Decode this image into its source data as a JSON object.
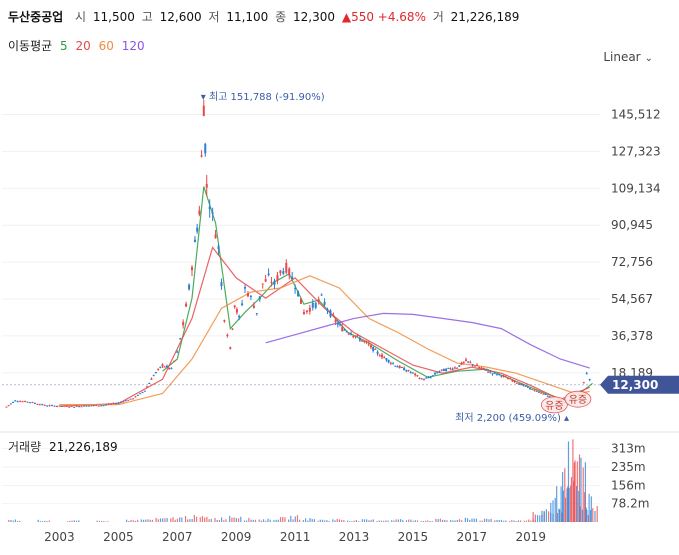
{
  "header": {
    "name": "두산중공업",
    "open_label": "시",
    "open": "11,500",
    "high_label": "고",
    "high": "12,600",
    "low_label": "저",
    "low": "11,100",
    "close_label": "종",
    "close": "12,300",
    "change": "▲550 +4.68%",
    "volume_label": "거",
    "volume": "21,226,189"
  },
  "ma_legend": {
    "label": "이동평균",
    "items": [
      {
        "period": "5",
        "color": "#2e9e3e"
      },
      {
        "period": "20",
        "color": "#e8464b"
      },
      {
        "period": "60",
        "color": "#f08c3c"
      },
      {
        "period": "120",
        "color": "#8a56e2"
      }
    ]
  },
  "scale_selector": {
    "label": "Linear",
    "icon": "chevron-down-icon"
  },
  "volume_panel": {
    "label": "거래량",
    "value": "21,226,189"
  },
  "chart_data": {
    "type": "candlestick",
    "x_ticks": [
      "2003",
      "2005",
      "2007",
      "2009",
      "2011",
      "2013",
      "2015",
      "2017",
      "2019"
    ],
    "y_ticks": [
      18189,
      36378,
      54567,
      72756,
      90945,
      109134,
      127323,
      145512
    ],
    "y_tick_labels": [
      "18,189",
      "36,378",
      "54,567",
      "72,756",
      "90,945",
      "109,134",
      "127,323",
      "145,512"
    ],
    "ylim": [
      -10000,
      165000
    ],
    "current_price": {
      "value": 12300,
      "label": "12,300"
    },
    "high_marker": {
      "value": 151788,
      "year": 2007.9,
      "label": "최고 151,788 (-91.90%)"
    },
    "low_marker": {
      "value": 2200,
      "year": 2020.3,
      "label": "최저 2,200 (459.09%)"
    },
    "event_badges": [
      {
        "label": "유증",
        "year": 2019.8,
        "value": 2400
      },
      {
        "label": "유증",
        "year": 2020.6,
        "value": 5200
      }
    ],
    "price_series": {
      "x": [
        2001.2,
        2001.5,
        2002.0,
        2002.5,
        2003.0,
        2003.5,
        2004.0,
        2004.5,
        2005.0,
        2005.5,
        2005.9,
        2006.2,
        2006.5,
        2006.8,
        2007.0,
        2007.2,
        2007.4,
        2007.6,
        2007.75,
        2007.9,
        2008.0,
        2008.2,
        2008.4,
        2008.6,
        2008.8,
        2008.95,
        2009.1,
        2009.3,
        2009.5,
        2009.7,
        2009.9,
        2010.1,
        2010.3,
        2010.5,
        2010.7,
        2010.9,
        2011.1,
        2011.3,
        2011.5,
        2011.7,
        2011.9,
        2012.1,
        2012.3,
        2012.6,
        2012.9,
        2013.2,
        2013.5,
        2013.8,
        2014.1,
        2014.4,
        2014.7,
        2015.0,
        2015.3,
        2015.6,
        2015.9,
        2016.2,
        2016.5,
        2016.8,
        2017.1,
        2017.4,
        2017.7,
        2018.0,
        2018.3,
        2018.6,
        2018.9,
        2019.2,
        2019.5,
        2019.8,
        2020.0,
        2020.3,
        2020.5,
        2020.7,
        2020.9,
        2021.1
      ],
      "close": [
        1500,
        4500,
        3800,
        2200,
        1800,
        1600,
        2000,
        2200,
        3500,
        5500,
        9500,
        17000,
        22000,
        20000,
        28000,
        42000,
        60000,
        82000,
        98000,
        150000,
        110000,
        95000,
        80000,
        45000,
        30000,
        52000,
        45000,
        60000,
        55000,
        48000,
        62000,
        65000,
        62000,
        68000,
        70000,
        65000,
        58000,
        48000,
        50000,
        52000,
        55000,
        50000,
        45000,
        40000,
        38000,
        35000,
        32000,
        28000,
        25000,
        22000,
        20000,
        18000,
        15000,
        16000,
        19000,
        20000,
        21000,
        24000,
        22000,
        20000,
        18000,
        17000,
        15000,
        13000,
        11000,
        9000,
        7500,
        5200,
        4200,
        3000,
        5000,
        9000,
        18000,
        12300
      ]
    },
    "ma_series": [
      {
        "name": "5",
        "x": [
          2006.5,
          2007.0,
          2007.5,
          2007.9,
          2008.3,
          2008.8,
          2009.3,
          2009.8,
          2010.3,
          2010.8,
          2011.3,
          2011.8,
          2012.3,
          2012.8,
          2013.5,
          2014.5,
          2015.5,
          2016.5,
          2017.5,
          2018.5,
          2019.5,
          2020.3,
          2021.1
        ],
        "y": [
          19000,
          25000,
          55000,
          110000,
          92000,
          40000,
          48000,
          55000,
          63000,
          67000,
          52000,
          54000,
          46000,
          38000,
          33000,
          24000,
          16000,
          19000,
          20000,
          14000,
          8000,
          4000,
          13000
        ]
      },
      {
        "name": "20",
        "x": [
          2003.0,
          2005.0,
          2006.5,
          2007.5,
          2008.2,
          2009.0,
          2010.0,
          2011.0,
          2012.0,
          2013.0,
          2014.0,
          2015.0,
          2016.0,
          2017.0,
          2018.0,
          2019.0,
          2020.0,
          2021.0
        ],
        "y": [
          1800,
          3000,
          15000,
          45000,
          80000,
          65000,
          55000,
          65000,
          50000,
          38000,
          30000,
          22000,
          18000,
          21000,
          18000,
          12000,
          5000,
          11000
        ]
      },
      {
        "name": "60",
        "x": [
          2003.0,
          2005.0,
          2006.5,
          2007.5,
          2008.5,
          2009.5,
          2010.5,
          2011.5,
          2012.5,
          2013.5,
          2014.5,
          2015.5,
          2016.5,
          2017.5,
          2018.5,
          2019.5,
          2020.5,
          2021.0
        ],
        "y": [
          2500,
          2500,
          8000,
          25000,
          50000,
          58000,
          60000,
          66000,
          60000,
          45000,
          38000,
          30000,
          23000,
          21000,
          18000,
          13000,
          8000,
          9000
        ]
      },
      {
        "name": "120",
        "x": [
          2010.0,
          2011.0,
          2012.0,
          2013.0,
          2014.0,
          2015.0,
          2016.0,
          2017.0,
          2018.0,
          2019.0,
          2020.0,
          2021.0
        ],
        "y": [
          33000,
          37000,
          41000,
          45000,
          47500,
          47000,
          45000,
          43000,
          40000,
          32000,
          25000,
          20500
        ]
      }
    ],
    "volume": {
      "y_ticks": [
        "78.2m",
        "156m",
        "235m",
        "313m"
      ],
      "y_tick_values": [
        78.2,
        156,
        235,
        313
      ],
      "ylim": [
        0,
        350
      ],
      "x": [
        2001.5,
        2002.5,
        2003.5,
        2004.5,
        2005.5,
        2006.0,
        2006.5,
        2007.0,
        2007.5,
        2008.0,
        2008.5,
        2009.0,
        2009.5,
        2010.0,
        2010.5,
        2011.0,
        2011.5,
        2012.0,
        2012.5,
        2013.0,
        2013.5,
        2014.0,
        2014.5,
        2015.0,
        2015.5,
        2016.0,
        2016.5,
        2017.0,
        2017.5,
        2018.0,
        2018.5,
        2019.0,
        2019.3,
        2019.6,
        2019.9,
        2020.1,
        2020.3,
        2020.5,
        2020.7,
        2020.9,
        2021.1
      ],
      "values": [
        10,
        8,
        6,
        5,
        9,
        12,
        15,
        20,
        25,
        22,
        18,
        30,
        15,
        12,
        18,
        25,
        15,
        10,
        12,
        8,
        10,
        9,
        12,
        10,
        8,
        12,
        10,
        18,
        12,
        10,
        8,
        12,
        40,
        60,
        90,
        130,
        200,
        313,
        250,
        120,
        60
      ]
    }
  }
}
